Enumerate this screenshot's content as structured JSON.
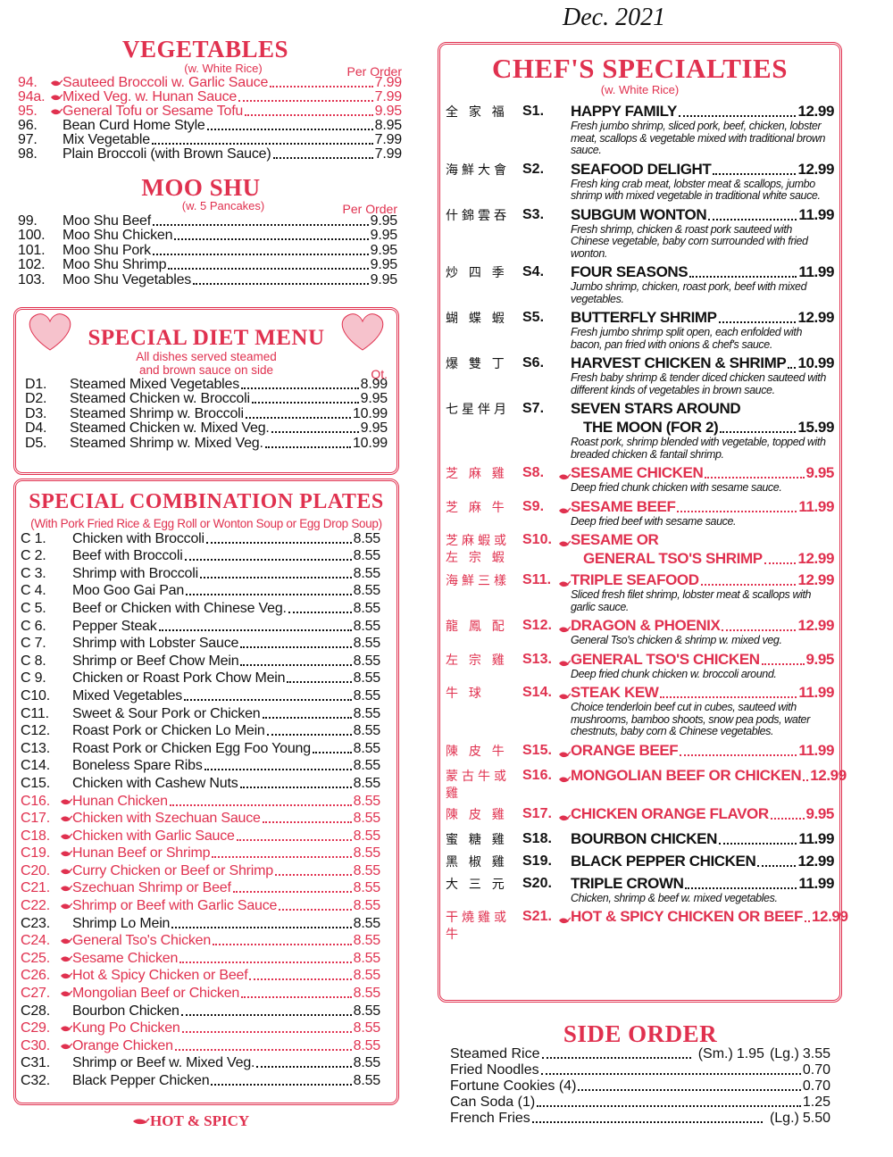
{
  "date_note": "Dec. 2021",
  "vegetables": {
    "title": "VEGETABLES",
    "subtitle": "(w. White Rice)",
    "price_header": "Per Order",
    "items": [
      {
        "code": "94.",
        "name": "Sauteed Broccoli w. Garlic Sauce",
        "price": "7.99",
        "spicy": true
      },
      {
        "code": "94a.",
        "name": "Mixed Veg. w. Hunan Sauce",
        "price": "7.99",
        "spicy": true
      },
      {
        "code": "95.",
        "name": "General Tofu  or Sesame Tofu",
        "price": "9.95",
        "spicy": true
      },
      {
        "code": "96.",
        "name": "Bean Curd Home Style",
        "price": "8.95"
      },
      {
        "code": "97.",
        "name": "Mix Vegetable",
        "price": "7.99"
      },
      {
        "code": "98.",
        "name": "Plain Broccoli (with Brown Sauce)",
        "price": "7.99"
      }
    ]
  },
  "moo_shu": {
    "title": "MOO SHU",
    "subtitle": "(w. 5 Pancakes)",
    "price_header": "Per Order",
    "items": [
      {
        "code": "99.",
        "name": "Moo Shu Beef",
        "price": "9.95"
      },
      {
        "code": "100.",
        "name": "Moo Shu Chicken",
        "price": "9.95"
      },
      {
        "code": "101.",
        "name": "Moo Shu Pork",
        "price": "9.95"
      },
      {
        "code": "102.",
        "name": "Moo Shu Shrimp",
        "price": "9.95"
      },
      {
        "code": "103.",
        "name": "Moo Shu Vegetables",
        "price": "9.95"
      }
    ]
  },
  "special_diet": {
    "title": "SPECIAL DIET MENU",
    "notes": [
      "All dishes served steamed",
      "and brown sauce on side"
    ],
    "price_header": "Qt.",
    "items": [
      {
        "code": "D1.",
        "name": "Steamed Mixed Vegetables",
        "price": "8.99"
      },
      {
        "code": "D2.",
        "name": "Steamed Chicken w. Broccoli",
        "price": "9.95"
      },
      {
        "code": "D3.",
        "name": "Steamed Shrimp w. Broccoli",
        "price": "10.99"
      },
      {
        "code": "D4.",
        "name": "Steamed Chicken w. Mixed Veg.",
        "price": "9.95"
      },
      {
        "code": "D5.",
        "name": "Steamed Shrimp w. Mixed Veg.",
        "price": "10.99"
      }
    ]
  },
  "combination_plates": {
    "title": "SPECIAL COMBINATION PLATES",
    "subtitle": "(With Pork Fried Rice & Egg Roll or Wonton Soup or Egg Drop Soup)",
    "items": [
      {
        "code": "C 1.",
        "name": "Chicken with Broccoli",
        "price": "8.55"
      },
      {
        "code": "C 2.",
        "name": "Beef with Broccoli",
        "price": "8.55"
      },
      {
        "code": "C 3.",
        "name": "Shrimp with Broccoli",
        "price": "8.55"
      },
      {
        "code": "C 4.",
        "name": "Moo Goo Gai Pan",
        "price": "8.55"
      },
      {
        "code": "C 5.",
        "name": "Beef or Chicken with Chinese Veg.",
        "price": "8.55"
      },
      {
        "code": "C 6.",
        "name": "Pepper Steak",
        "price": "8.55"
      },
      {
        "code": "C 7.",
        "name": "Shrimp with Lobster Sauce",
        "price": "8.55"
      },
      {
        "code": "C 8.",
        "name": "Shrimp or Beef Chow Mein",
        "price": "8.55"
      },
      {
        "code": "C 9.",
        "name": "Chicken or Roast Pork Chow Mein",
        "price": "8.55"
      },
      {
        "code": "C10.",
        "name": "Mixed Vegetables",
        "price": "8.55"
      },
      {
        "code": "C11.",
        "name": "Sweet & Sour Pork or Chicken",
        "price": "8.55"
      },
      {
        "code": "C12.",
        "name": "Roast Pork or Chicken Lo Mein",
        "price": "8.55"
      },
      {
        "code": "C13.",
        "name": "Roast Pork or Chicken Egg Foo Young",
        "price": "8.55"
      },
      {
        "code": "C14.",
        "name": "Boneless Spare Ribs",
        "price": "8.55"
      },
      {
        "code": "C15.",
        "name": "Chicken with Cashew Nuts",
        "price": "8.55"
      },
      {
        "code": "C16.",
        "name": "Hunan Chicken",
        "price": "8.55",
        "spicy": true
      },
      {
        "code": "C17.",
        "name": "Chicken with Szechuan Sauce",
        "price": "8.55",
        "spicy": true
      },
      {
        "code": "C18.",
        "name": "Chicken with Garlic Sauce",
        "price": "8.55",
        "spicy": true
      },
      {
        "code": "C19.",
        "name": "Hunan Beef or Shrimp",
        "price": "8.55",
        "spicy": true
      },
      {
        "code": "C20.",
        "name": "Curry Chicken or Beef or Shrimp",
        "price": "8.55",
        "spicy": true
      },
      {
        "code": "C21.",
        "name": "Szechuan Shrimp or Beef",
        "price": "8.55",
        "spicy": true
      },
      {
        "code": "C22.",
        "name": "Shrimp or Beef with Garlic Sauce",
        "price": "8.55",
        "spicy": true
      },
      {
        "code": "C23.",
        "name": "Shrimp Lo Mein",
        "price": "8.55"
      },
      {
        "code": "C24.",
        "name": "General Tso's Chicken",
        "price": "8.55",
        "spicy": true
      },
      {
        "code": "C25.",
        "name": "Sesame Chicken",
        "price": "8.55",
        "spicy": true
      },
      {
        "code": "C26.",
        "name": "Hot & Spicy Chicken or Beef",
        "price": "8.55",
        "spicy": true
      },
      {
        "code": "C27.",
        "name": "Mongolian Beef or Chicken",
        "price": "8.55",
        "spicy": true
      },
      {
        "code": "C28.",
        "name": "Bourbon Chicken",
        "price": "8.55"
      },
      {
        "code": "C29.",
        "name": "Kung Po Chicken",
        "price": "8.55",
        "spicy": true
      },
      {
        "code": "C30.",
        "name": "Orange Chicken",
        "price": "8.55",
        "spicy": true
      },
      {
        "code": "C31.",
        "name": "Shrimp or Beef w. Mixed Veg.",
        "price": "8.55"
      },
      {
        "code": "C32.",
        "name": "Black Pepper Chicken",
        "price": "8.55"
      }
    ]
  },
  "spicy_legend": "HOT & SPICY",
  "chefs_specialties": {
    "title": "CHEF'S SPECIALTIES",
    "subtitle": "(w. White Rice)",
    "items": [
      {
        "chinese": [
          "全 家 福"
        ],
        "code": "S1.",
        "name": [
          "HAPPY FAMILY"
        ],
        "price": "12.99",
        "desc": "Fresh jumbo shrimp, sliced pork, beef, chicken, lobster meat, scallops & vegetable mixed with traditional brown sauce."
      },
      {
        "chinese": [
          "海鮮大會"
        ],
        "code": "S2.",
        "name": [
          "SEAFOOD DELIGHT"
        ],
        "price": "12.99",
        "desc": "Fresh king crab meat, lobster meat & scallops, jumbo shrimp with mixed vegetable in traditional white sauce."
      },
      {
        "chinese": [
          "什錦雲吞"
        ],
        "code": "S3.",
        "name": [
          "SUBGUM WONTON"
        ],
        "price": "11.99",
        "desc": "Fresh shrimp, chicken & roast pork sauteed with Chinese vegetable, baby corn surrounded with fried wonton."
      },
      {
        "chinese": [
          "炒 四 季"
        ],
        "code": "S4.",
        "name": [
          "FOUR SEASONS"
        ],
        "price": "11.99",
        "desc": "Jumbo shrimp, chicken, roast pork, beef with mixed vegetables."
      },
      {
        "chinese": [
          "蝴 蝶 蝦"
        ],
        "code": "S5.",
        "name": [
          "BUTTERFLY SHRIMP"
        ],
        "price": "12.99",
        "desc": "Fresh jumbo shrimp split open, each enfolded with bacon, pan fried with onions & chef's sauce."
      },
      {
        "chinese": [
          "爆 雙 丁"
        ],
        "code": "S6.",
        "name": [
          "HARVEST CHICKEN & SHRIMP"
        ],
        "price": "10.99",
        "desc": "Fresh baby shrimp & tender diced chicken sauteed with different kinds of vegetables in brown sauce."
      },
      {
        "chinese": [
          "七星伴月"
        ],
        "code": "S7.",
        "name": [
          "SEVEN STARS AROUND",
          "THE MOON (FOR 2)"
        ],
        "price": "15.99",
        "desc": "Roast pork, shrimp blended with vegetable, topped with breaded chicken & fantail shrimp."
      },
      {
        "chinese": [
          "芝 麻 雞"
        ],
        "code": "S8.",
        "name": [
          "SESAME CHICKEN"
        ],
        "price": "9.95",
        "spicy": true,
        "desc": "Deep fried chunk chicken with sesame sauce."
      },
      {
        "chinese": [
          "芝 麻 牛"
        ],
        "code": "S9.",
        "name": [
          "SESAME BEEF"
        ],
        "price": "11.99",
        "spicy": true,
        "desc": "Deep fried beef with sesame sauce."
      },
      {
        "chinese": [
          "芝麻蝦或",
          "左 宗 蝦"
        ],
        "code": "S10.",
        "name": [
          "SESAME OR",
          "GENERAL TSO'S SHRIMP"
        ],
        "price": "12.99",
        "spicy": true
      },
      {
        "chinese": [
          "海鮮三樣"
        ],
        "code": "S11.",
        "name": [
          "TRIPLE SEAFOOD"
        ],
        "price": "12.99",
        "spicy": true,
        "desc": "Sliced fresh filet shrimp, lobster meat & scallops with garlic sauce."
      },
      {
        "chinese": [
          "龍 鳳 配"
        ],
        "code": "S12.",
        "name": [
          "DRAGON & PHOENIX"
        ],
        "price": "12.99",
        "spicy": true,
        "desc": "General Tso's chicken & shrimp w. mixed veg."
      },
      {
        "chinese": [
          "左 宗 雞"
        ],
        "code": "S13.",
        "name": [
          "GENERAL TSO'S CHICKEN"
        ],
        "price": "9.95",
        "spicy": true,
        "desc": "Deep fried chunk chicken w. broccoli around."
      },
      {
        "chinese": [
          "牛    球"
        ],
        "code": "S14.",
        "name": [
          "STEAK KEW"
        ],
        "price": "11.99",
        "spicy": true,
        "desc": "Choice tenderloin beef cut in cubes, sauteed with mushrooms, bamboo shoots, snow pea pods, water chestnuts, baby corn & Chinese vegetables."
      },
      {
        "chinese": [
          "陳 皮 牛"
        ],
        "code": "S15.",
        "name": [
          "ORANGE BEEF"
        ],
        "price": "11.99",
        "spicy": true
      },
      {
        "chinese": [
          "蒙古牛或雞"
        ],
        "code": "S16.",
        "name": [
          "MONGOLIAN BEEF OR CHICKEN"
        ],
        "price": "12.99",
        "spicy": true
      },
      {
        "chinese": [
          "陳 皮 雞"
        ],
        "code": "S17.",
        "name": [
          "CHICKEN ORANGE FLAVOR"
        ],
        "price": "9.95",
        "spicy": true
      },
      {
        "chinese": [
          "蜜 糖 雞"
        ],
        "code": "S18.",
        "name": [
          "BOURBON CHICKEN"
        ],
        "price": "11.99"
      },
      {
        "chinese": [
          "黑 椒 雞"
        ],
        "code": "S19.",
        "name": [
          "BLACK PEPPER CHICKEN"
        ],
        "price": "12.99"
      },
      {
        "chinese": [
          "大 三 元"
        ],
        "code": "S20.",
        "name": [
          "TRIPLE CROWN"
        ],
        "price": "11.99",
        "desc": "Chicken, shrimp & beef w. mixed vegetables."
      },
      {
        "chinese": [
          "干燒雞或牛"
        ],
        "code": "S21.",
        "name": [
          "HOT & SPICY CHICKEN OR BEEF"
        ],
        "price": "12.99",
        "spicy": true
      }
    ]
  },
  "side_order": {
    "title": "SIDE ORDER",
    "items": [
      {
        "name": "Steamed Rice",
        "prices": [
          {
            "size": "(Sm.)",
            "price": "1.95"
          },
          {
            "size": "(Lg.)",
            "price": "3.55"
          }
        ]
      },
      {
        "name": "Fried Noodles",
        "prices": [
          {
            "price": "0.70"
          }
        ]
      },
      {
        "name": "Fortune Cookies (4)",
        "prices": [
          {
            "price": "0.70"
          }
        ]
      },
      {
        "name": "Can Soda (1)",
        "prices": [
          {
            "price": "1.25"
          }
        ]
      },
      {
        "name": "French Fries",
        "prices": [
          {
            "size": "(Lg.)",
            "price": "5.50"
          }
        ]
      }
    ]
  }
}
